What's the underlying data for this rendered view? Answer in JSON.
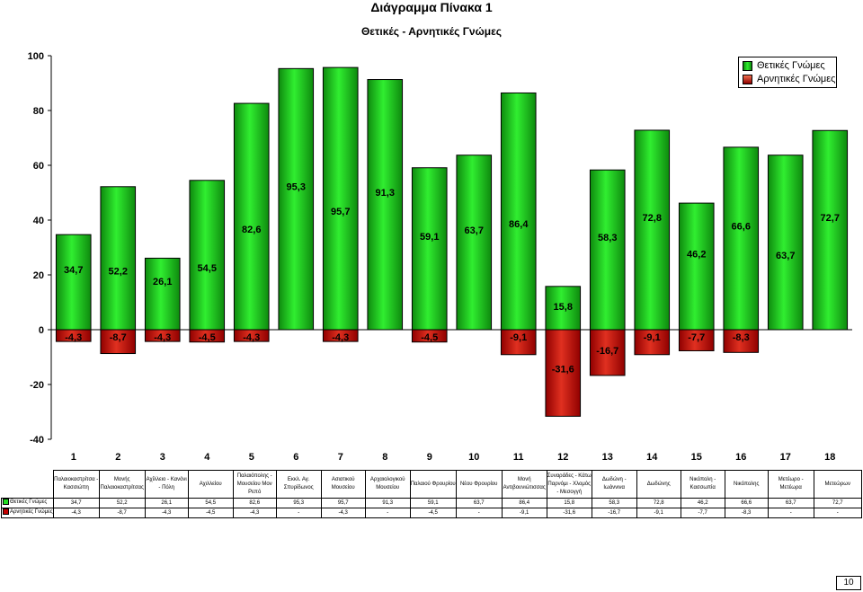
{
  "title": "Διάγραμμα Πίνακα 1",
  "subtitle": "Θετικές - Αρνητικές Γνώμες",
  "colors": {
    "positive": "#22dd22",
    "negative": "#c40000"
  },
  "legend": {
    "positive": "Θετικές Γνώμες",
    "negative": "Αρνητικές Γνώμες"
  },
  "chart_data": {
    "type": "bar",
    "title": "Θετικές - Αρνητικές Γνώμες",
    "ylim": [
      -40,
      100
    ],
    "yticks": [
      -40,
      -20,
      0,
      20,
      40,
      60,
      80,
      100
    ],
    "grid": false,
    "legend_position": "top-right",
    "categories": [
      "1",
      "2",
      "3",
      "4",
      "5",
      "6",
      "7",
      "8",
      "9",
      "10",
      "11",
      "12",
      "13",
      "14",
      "15",
      "16",
      "17",
      "18"
    ],
    "series": [
      {
        "name": "Θετικές Γνώμες",
        "values": [
          34.7,
          52.2,
          26.1,
          54.5,
          82.6,
          95.3,
          95.7,
          91.3,
          59.1,
          63.7,
          86.4,
          15.8,
          58.3,
          72.8,
          46.2,
          66.6,
          63.7,
          72.7
        ],
        "labels": [
          "34,7",
          "52,2",
          "26,1",
          "54,5",
          "82,6",
          "95,3",
          "95,7",
          "91,3",
          "59,1",
          "63,7",
          "86,4",
          "15,8",
          "58,3",
          "72,8",
          "46,2",
          "66,6",
          "63,7",
          "72,7"
        ]
      },
      {
        "name": "Αρνητικές Γνώμες",
        "values": [
          -4.3,
          -8.7,
          -4.3,
          -4.5,
          -4.3,
          null,
          -4.3,
          null,
          -4.5,
          null,
          -9.1,
          -31.6,
          -16.7,
          -9.1,
          -7.7,
          -8.3,
          null,
          null
        ],
        "labels": [
          "-4,3",
          "-8,7",
          "-4,3",
          "-4,5",
          "-4,3",
          "-",
          "-4,3",
          "-",
          "-4,5",
          "-",
          "-9,1",
          "-31,6",
          "-16,7",
          "-9,1",
          "-7,7",
          "-8,3",
          "-",
          "-"
        ]
      }
    ]
  },
  "table": {
    "headers": [
      "Παλαιοκαστρίτσα - Κασσιώπη",
      "Μονής Παλαιοκαστρίτσας",
      "Αχίλλειο - Κανόνι - Πόλη",
      "Αχιλλείου",
      "Παλαιόπολης - Μουσείου Μον Ρεπό",
      "Εκκλ. Αγ. Σπυρίδωνος",
      "Ασιατικού Μουσείου",
      "Αρχαιολογικού Μουσείου",
      "Παλαιού Φρουρίου",
      "Νέου Φρουρίου",
      "Μονή Αντιβουνιώτισσας",
      "Συναράδες - Κάτω Παρνόμι - Χλομός - Μεσογγή",
      "Δωδώνη - Ιωάννινα",
      "Δωδώνης",
      "Νικόπολη - Κασσωπία",
      "Νικόπολης",
      "Μετέωρο - Μετέωρα",
      "Μετεώρων"
    ],
    "rows": [
      {
        "label": "Θετικές Γνώμες",
        "cells": [
          "34,7",
          "52,2",
          "26,1",
          "54,5",
          "82,6",
          "95,3",
          "95,7",
          "91,3",
          "59,1",
          "63,7",
          "86,4",
          "15,8",
          "58,3",
          "72,8",
          "46,2",
          "66,6",
          "63,7",
          "72,7"
        ]
      },
      {
        "label": "Αρνητικές Γνώμες",
        "cells": [
          "-4,3",
          "-8,7",
          "-4,3",
          "-4,5",
          "-4,3",
          "-",
          "-4,3",
          "-",
          "-4,5",
          "-",
          "-9,1",
          "-31,6",
          "-16,7",
          "-9,1",
          "-7,7",
          "-8,3",
          "-",
          "-"
        ]
      }
    ]
  },
  "page_number": "10"
}
